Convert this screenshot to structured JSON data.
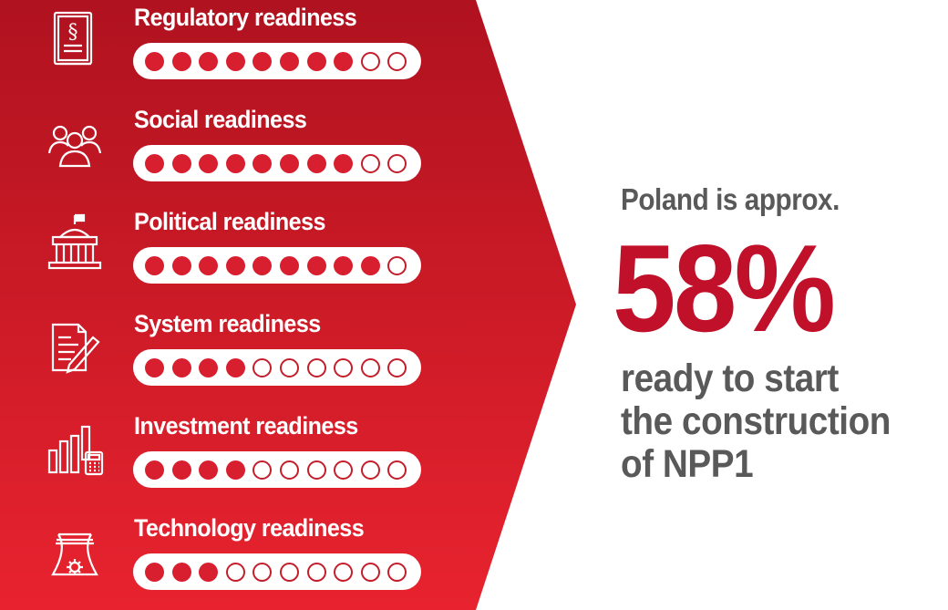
{
  "colors": {
    "panel_top": "#b0121f",
    "panel_bottom": "#e8232f",
    "dot_filled": "#d81f2f",
    "headline": "#c0102a",
    "body_text": "#595959"
  },
  "rows": [
    {
      "label": "Regulatory readiness",
      "icon": "legal-document-icon",
      "filled": 8,
      "total": 10
    },
    {
      "label": "Social readiness",
      "icon": "people-group-icon",
      "filled": 8,
      "total": 10
    },
    {
      "label": "Political readiness",
      "icon": "government-building-icon",
      "filled": 9,
      "total": 10
    },
    {
      "label": "System readiness",
      "icon": "document-pen-icon",
      "filled": 4,
      "total": 10
    },
    {
      "label": "Investment readiness",
      "icon": "bar-chart-calculator-icon",
      "filled": 4,
      "total": 10
    },
    {
      "label": "Technology readiness",
      "icon": "cooling-tower-icon",
      "filled": 3,
      "total": 10
    }
  ],
  "summary": {
    "intro": "Poland is approx.",
    "percent": "58%",
    "line1": "ready to start",
    "line2": "the construction",
    "line3": "of NPP1"
  }
}
